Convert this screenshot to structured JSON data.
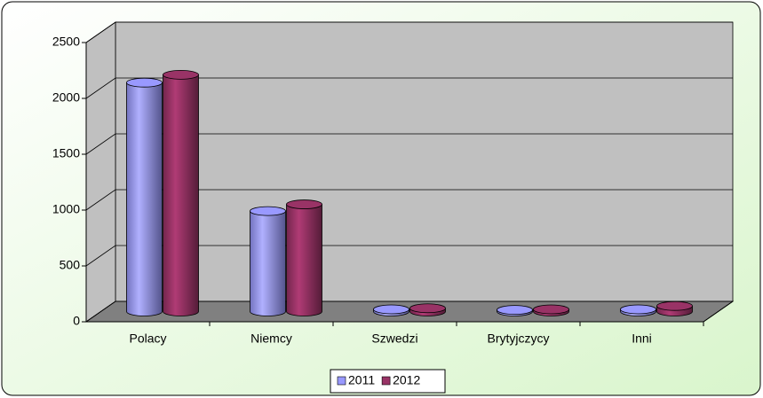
{
  "chart_data": {
    "type": "bar3d",
    "categories": [
      "Polacy",
      "Niemcy",
      "Szwedzi",
      "Brytyjczycy",
      "Inni"
    ],
    "series": [
      {
        "name": "2011",
        "color": "#9999ff",
        "values": [
          2050,
          900,
          20,
          15,
          20
        ]
      },
      {
        "name": "2012",
        "color": "#993366",
        "values": [
          2120,
          960,
          30,
          20,
          50
        ]
      }
    ],
    "ylim": [
      0,
      2500
    ],
    "yticks": [
      0,
      500,
      1000,
      1500,
      2000,
      2500
    ],
    "grid": true,
    "legend": "bottom"
  }
}
